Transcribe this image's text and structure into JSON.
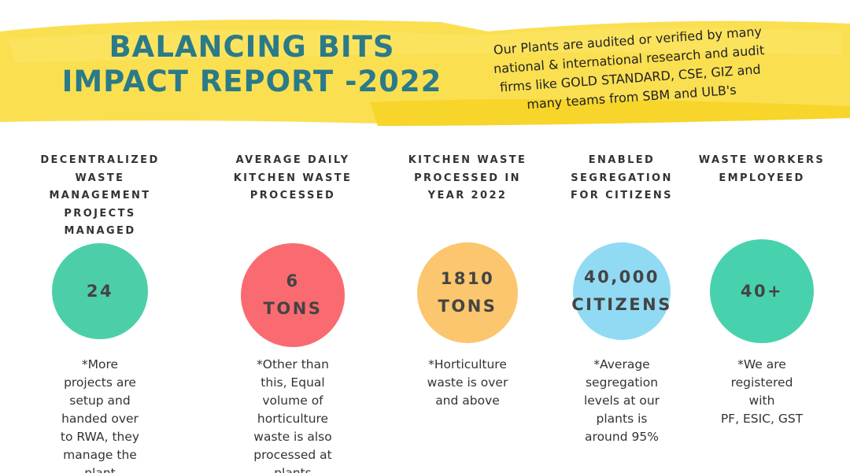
{
  "header": {
    "title": [
      "BALANCING BITS",
      "IMPACT REPORT -2022"
    ],
    "note": [
      "Our Plants are audited or verified by many",
      "national & international research and audit",
      "firms like GOLD STANDARD, CSE, GIZ and",
      "many teams from SBM and ULB's"
    ]
  },
  "stats": [
    {
      "heading": [
        "DECENTRALIZED",
        "WASTE",
        "MANAGEMENT",
        "PROJECTS",
        "MANAGED"
      ],
      "value": [
        "24"
      ],
      "note": [
        "*More",
        "projects are",
        "setup and",
        "handed over",
        "to RWA, they",
        "manage the",
        "plant"
      ]
    },
    {
      "heading": [
        "AVERAGE DAILY",
        "KITCHEN WASTE",
        "PROCESSED"
      ],
      "value": [
        "6",
        "TONS"
      ],
      "note": [
        "*Other than",
        "this, Equal",
        "volume of",
        "horticulture",
        "waste is also",
        "processed at",
        "plants"
      ]
    },
    {
      "heading": [
        "KITCHEN WASTE",
        "PROCESSED IN",
        "YEAR 2022"
      ],
      "value": [
        "1810",
        "TONS"
      ],
      "note": [
        "*Horticulture",
        "waste is over",
        "and above"
      ]
    },
    {
      "heading": [
        "ENABLED",
        "SEGREGATION",
        "FOR  CITIZENS"
      ],
      "value": [
        "40,000",
        "CITIZENS"
      ],
      "note": [
        "*Average",
        "segregation",
        "levels at our",
        "plants is",
        "around 95%"
      ]
    },
    {
      "heading": [
        "WASTE WORKERS",
        "EMPLOYEED"
      ],
      "value": [
        "40+"
      ],
      "note": [
        "*We are",
        "registered",
        "with",
        "PF, ESIC, GST"
      ]
    }
  ]
}
